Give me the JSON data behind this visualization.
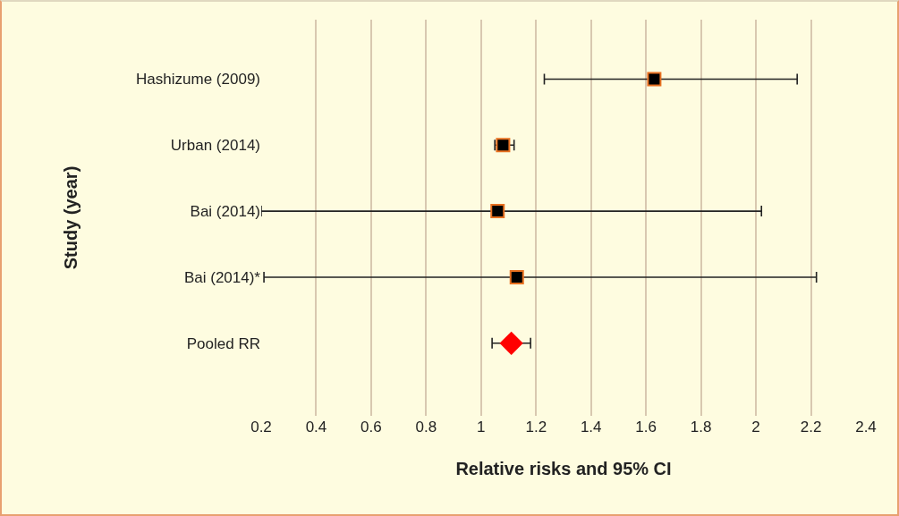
{
  "chart_data": {
    "type": "scatter",
    "orientation": "horizontal",
    "xlabel": "Relative risks and 95% CI",
    "ylabel": "Study (year)",
    "categories": [
      "Hashizume (2009)",
      "Urban (2014)",
      "Bai (2014)",
      "Bai (2014)*",
      "Pooled RR"
    ],
    "series": [
      {
        "color": "#000000",
        "marker": "square",
        "values": [
          1.63,
          1.08,
          1.06,
          1.13,
          null
        ],
        "errors": [
          [
            1.23,
            2.15
          ],
          [
            1.05,
            1.12
          ],
          [
            0.2,
            2.02
          ],
          [
            0.21,
            2.22
          ],
          null
        ]
      },
      {
        "color": "#ff0000",
        "marker": "diamond",
        "values": [
          null,
          null,
          null,
          null,
          1.11
        ],
        "errors": [
          null,
          null,
          null,
          null,
          [
            1.04,
            1.18
          ]
        ]
      }
    ],
    "xlim": [
      0.2,
      2.4
    ],
    "xticks": [
      0.2,
      0.4,
      0.6,
      0.8,
      1,
      1.2,
      1.4,
      1.6,
      1.8,
      2,
      2.2,
      2.4
    ],
    "grid": "x"
  }
}
